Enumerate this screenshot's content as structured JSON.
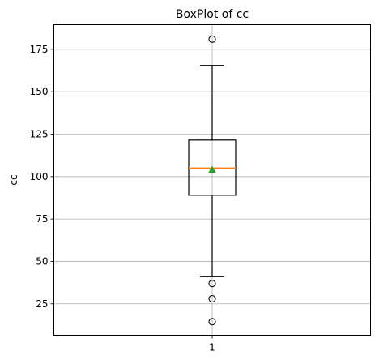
{
  "chart_data": {
    "type": "box",
    "title": "BoxPlot of cc",
    "xlabel": "",
    "ylabel": "cc",
    "ylim": [
      6.5,
      189.5
    ],
    "grid": true,
    "categories": [
      "1"
    ],
    "x_tick_labels": [
      "1"
    ],
    "y_ticks": [
      25,
      50,
      75,
      100,
      125,
      150,
      175
    ],
    "y_tick_labels": [
      "25",
      "50",
      "75",
      "100",
      "125",
      "150",
      "175"
    ],
    "boxes": [
      {
        "category": "1",
        "whisker_low": 41,
        "q1": 89,
        "median": 105,
        "mean": 104,
        "q3": 121.5,
        "whisker_high": 165.5,
        "outliers": [
          181,
          37,
          28,
          14.5
        ]
      }
    ],
    "colors": {
      "box": "#000000",
      "median": "#ff7f0e",
      "mean": "#2ca02c",
      "grid": "#b0b0b0"
    }
  }
}
